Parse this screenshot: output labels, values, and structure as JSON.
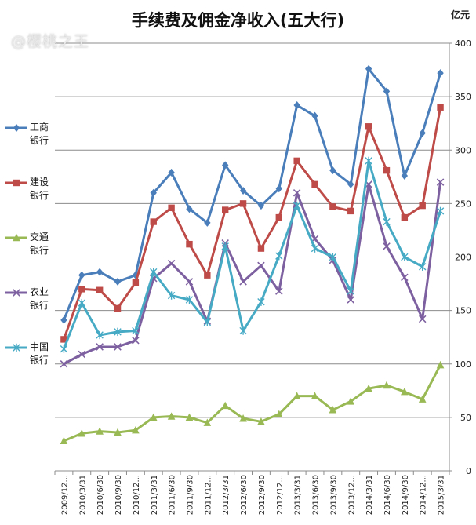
{
  "title": "手续费及佣金净收入(五大行)",
  "unit": "亿元",
  "watermark": "@樱桃之王",
  "chart_data": {
    "type": "line",
    "title": "手续费及佣金净收入(五大行)",
    "ylabel": "亿元",
    "xlabel": "",
    "ylim": [
      0,
      400
    ],
    "yticks": [
      0,
      50,
      100,
      150,
      200,
      250,
      300,
      350,
      400
    ],
    "ytick_labels": [
      "0",
      "50",
      "100",
      "150",
      "200",
      "250",
      "300",
      "350",
      "400"
    ],
    "grid": true,
    "y_axis_position": "right",
    "legend_position": "left",
    "categories": [
      "2009/12...",
      "2010/3/31",
      "2010/6/30",
      "2010/9/30",
      "2010/12...",
      "2011/3/31",
      "2011/6/30",
      "2011/9/30",
      "2011/12...",
      "2012/3/31",
      "2012/6/30",
      "2012/9/30",
      "2012/12...",
      "2013/3/31",
      "2013/6/30",
      "2013/9/30",
      "2013/12...",
      "2014/3/31",
      "2014/6/30",
      "2014/9/30",
      "2014/12...",
      "2015/3/31"
    ],
    "series": [
      {
        "name": "工商银行",
        "label_line1": "工商",
        "label_line2": "银行",
        "color": "#4a7ebb",
        "marker": "diamond",
        "values": [
          141,
          183,
          186,
          177,
          183,
          260,
          279,
          245,
          232,
          286,
          262,
          248,
          264,
          342,
          332,
          281,
          268,
          376,
          355,
          276,
          316,
          372
        ]
      },
      {
        "name": "建设银行",
        "label_line1": "建设",
        "label_line2": "银行",
        "color": "#be4b48",
        "marker": "square",
        "values": [
          123,
          170,
          169,
          152,
          176,
          233,
          246,
          212,
          183,
          244,
          250,
          208,
          237,
          290,
          268,
          247,
          243,
          322,
          281,
          237,
          248,
          340
        ]
      },
      {
        "name": "交通银行",
        "label_line1": "交通",
        "label_line2": "银行",
        "color": "#98b954",
        "marker": "triangle",
        "values": [
          28,
          35,
          37,
          36,
          38,
          50,
          51,
          50,
          45,
          61,
          49,
          46,
          53,
          70,
          70,
          57,
          65,
          77,
          80,
          74,
          67,
          99
        ]
      },
      {
        "name": "农业银行",
        "label_line1": "农业",
        "label_line2": "银行",
        "color": "#7d60a0",
        "marker": "x",
        "values": [
          100,
          109,
          116,
          116,
          122,
          180,
          194,
          177,
          140,
          213,
          177,
          192,
          168,
          260,
          217,
          197,
          160,
          268,
          210,
          181,
          142,
          270
        ]
      },
      {
        "name": "中国银行",
        "label_line1": "中国",
        "label_line2": "银行",
        "color": "#46aac5",
        "marker": "star",
        "values": [
          114,
          157,
          127,
          130,
          131,
          186,
          164,
          160,
          139,
          210,
          131,
          158,
          201,
          248,
          208,
          200,
          168,
          290,
          233,
          200,
          191,
          243
        ]
      }
    ]
  }
}
